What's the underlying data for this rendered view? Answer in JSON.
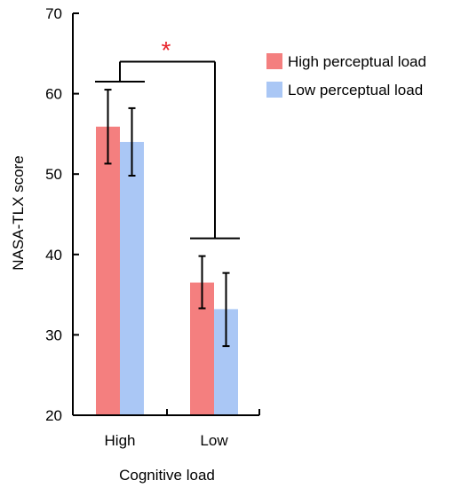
{
  "chart_data": {
    "type": "bar",
    "categories": [
      "High",
      "Low"
    ],
    "series": [
      {
        "name": "High perceptual load",
        "color": "#f47f7f",
        "values": [
          55.9,
          36.5
        ],
        "error": [
          [
            51.3,
            60.5
          ],
          [
            33.3,
            39.8
          ]
        ]
      },
      {
        "name": "Low perceptual load",
        "color": "#aac7f5",
        "values": [
          54.0,
          33.2
        ],
        "error": [
          [
            49.8,
            58.2
          ],
          [
            28.6,
            37.7
          ]
        ]
      }
    ],
    "xlabel": "Cognitive load",
    "ylabel": "NASA-TLX score",
    "ylim": [
      20,
      70
    ],
    "yticks": [
      "20",
      "30",
      "40",
      "50",
      "60",
      "70"
    ],
    "significance": {
      "marker": "*",
      "color": "#e8232a",
      "levels": [
        61.5,
        62.0,
        42.0
      ]
    },
    "legend_position": "top-right",
    "grid": false
  }
}
